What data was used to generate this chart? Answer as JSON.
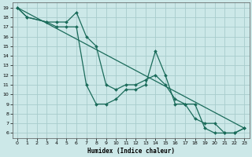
{
  "xlabel": "Humidex (Indice chaleur)",
  "bg_color": "#cce8e8",
  "grid_color": "#a8cccc",
  "line_color": "#1a6b5a",
  "xlim": [
    -0.5,
    23.5
  ],
  "ylim": [
    5.5,
    19.5
  ],
  "xticks": [
    0,
    1,
    2,
    3,
    4,
    5,
    6,
    7,
    8,
    9,
    10,
    11,
    12,
    13,
    14,
    15,
    16,
    17,
    18,
    19,
    20,
    21,
    22,
    23
  ],
  "yticks": [
    6,
    7,
    8,
    9,
    10,
    11,
    12,
    13,
    14,
    15,
    16,
    17,
    18,
    19
  ],
  "line_straight": {
    "x": [
      0,
      23
    ],
    "y": [
      19,
      6.5
    ]
  },
  "line1": {
    "x": [
      0,
      1,
      3,
      4,
      5,
      6,
      7,
      8,
      9,
      10,
      11,
      12,
      13,
      14,
      15,
      16,
      17,
      18,
      19,
      20,
      21,
      22,
      23
    ],
    "y": [
      19,
      18,
      17.5,
      17.5,
      17.5,
      18.5,
      16,
      15,
      11,
      10.5,
      11,
      11,
      11.5,
      12,
      11,
      9.5,
      9,
      7.5,
      7,
      7,
      6,
      6,
      6.5
    ]
  },
  "line2": {
    "x": [
      0,
      1,
      3,
      4,
      5,
      6,
      7,
      8,
      9,
      10,
      11,
      12,
      13,
      14,
      15,
      16,
      17,
      18,
      19,
      20,
      21,
      22,
      23
    ],
    "y": [
      19,
      18,
      17.5,
      17,
      17,
      17,
      11,
      9,
      9,
      9.5,
      10.5,
      10.5,
      11,
      14.5,
      12,
      9,
      9,
      9,
      6.5,
      6,
      6,
      6,
      6.5
    ]
  }
}
